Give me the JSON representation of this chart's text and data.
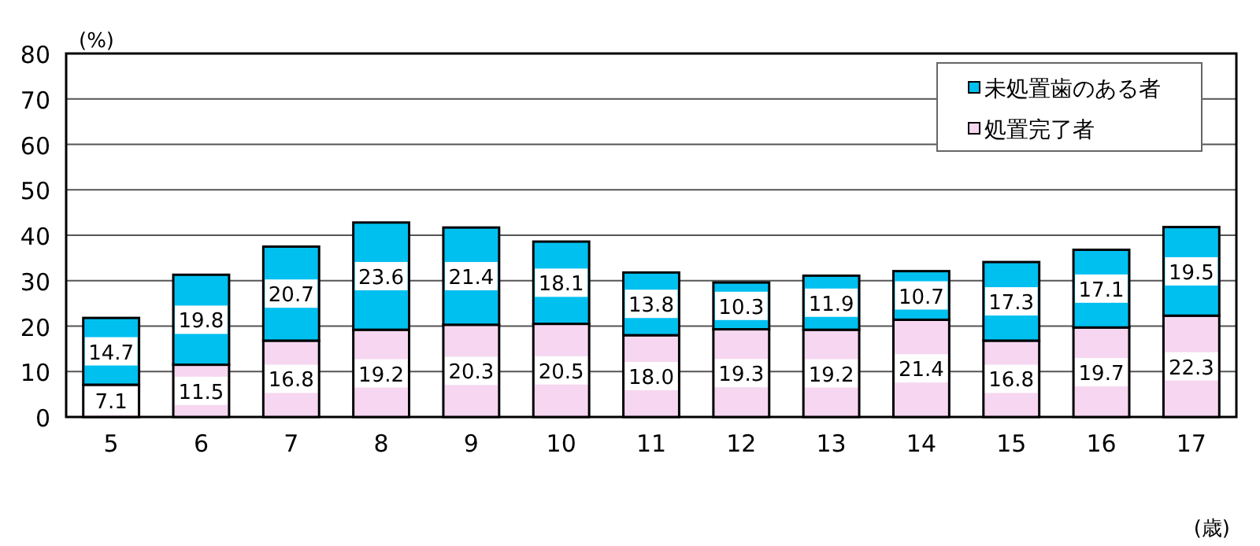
{
  "chart_data": {
    "type": "bar",
    "stacked": true,
    "ylabel": "(%)",
    "xlabel": "(歳)",
    "categories": [
      "5",
      "6",
      "7",
      "8",
      "9",
      "10",
      "11",
      "12",
      "13",
      "14",
      "15",
      "16",
      "17"
    ],
    "series": [
      {
        "name": "処置完了者",
        "color": "#f6d6f0",
        "values": [
          7.1,
          11.5,
          16.8,
          19.2,
          20.3,
          20.5,
          18.0,
          19.3,
          19.2,
          21.4,
          16.8,
          19.7,
          22.3
        ],
        "value_labels": [
          "7.1",
          "11.5",
          "16.8",
          "19.2",
          "20.3",
          "20.5",
          "18.0",
          "19.3",
          "19.2",
          "21.4",
          "16.8",
          "19.7",
          "22.3"
        ]
      },
      {
        "name": "未処置歯のある者",
        "color": "#00c0f0",
        "values": [
          14.7,
          19.8,
          20.7,
          23.6,
          21.4,
          18.1,
          13.8,
          10.3,
          11.9,
          10.7,
          17.3,
          17.1,
          19.5
        ],
        "value_labels": [
          "14.7",
          "19.8",
          "20.7",
          "23.6",
          "21.4",
          "18.1",
          "13.8",
          "10.3",
          "11.9",
          "10.7",
          "17.3",
          "17.1",
          "19.5"
        ]
      }
    ],
    "ylim": [
      0,
      80
    ],
    "yticks": [
      0,
      10,
      20,
      30,
      40,
      50,
      60,
      70,
      80
    ],
    "grid": "y",
    "legend": "top right"
  }
}
